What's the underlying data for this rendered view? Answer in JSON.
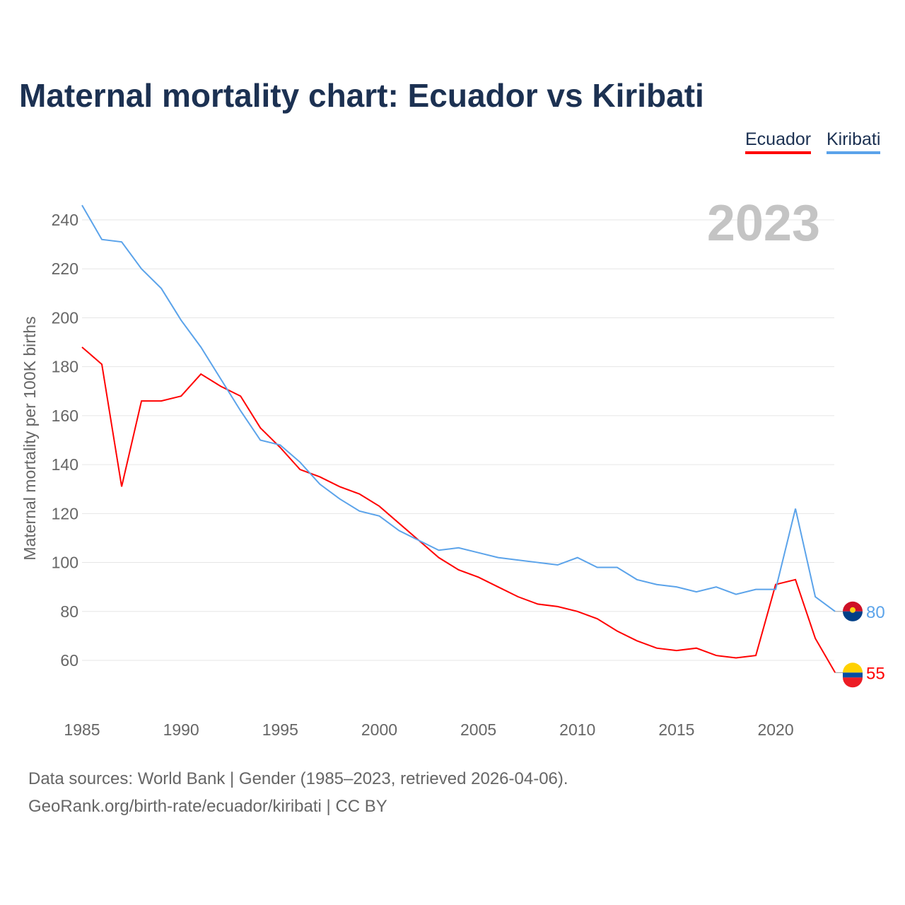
{
  "chart_data": {
    "type": "line",
    "title": "Maternal mortality chart: Ecuador vs Kiribati",
    "ylabel": "Maternal mortality per 100K births",
    "xlabel": "",
    "year_label": "2023",
    "xlim": [
      1985,
      2023
    ],
    "ylim": [
      45,
      250
    ],
    "xticks": [
      1985,
      1990,
      1995,
      2000,
      2005,
      2010,
      2015,
      2020
    ],
    "yticks": [
      60,
      80,
      100,
      120,
      140,
      160,
      180,
      200,
      220,
      240
    ],
    "grid": true,
    "legend_position": "top-right",
    "x": [
      1985,
      1986,
      1987,
      1988,
      1989,
      1990,
      1991,
      1992,
      1993,
      1994,
      1995,
      1996,
      1997,
      1998,
      1999,
      2000,
      2001,
      2002,
      2003,
      2004,
      2005,
      2006,
      2007,
      2008,
      2009,
      2010,
      2011,
      2012,
      2013,
      2014,
      2015,
      2016,
      2017,
      2018,
      2019,
      2020,
      2021,
      2022,
      2023
    ],
    "series": [
      {
        "name": "Ecuador",
        "color": "#ff0000",
        "end_label": "55",
        "values": [
          188,
          181,
          131,
          166,
          166,
          168,
          177,
          172,
          168,
          155,
          147,
          138,
          135,
          131,
          128,
          123,
          116,
          109,
          102,
          97,
          94,
          90,
          86,
          83,
          82,
          80,
          77,
          72,
          68,
          65,
          64,
          65,
          62,
          61,
          62,
          91,
          93,
          69,
          55
        ]
      },
      {
        "name": "Kiribati",
        "color": "#5ba3ea",
        "end_label": "80",
        "values": [
          246,
          232,
          231,
          220,
          212,
          199,
          188,
          175,
          162,
          150,
          148,
          141,
          132,
          126,
          121,
          119,
          113,
          109,
          105,
          106,
          104,
          102,
          101,
          100,
          99,
          102,
          98,
          98,
          93,
          91,
          90,
          88,
          90,
          87,
          89,
          89,
          122,
          86,
          80
        ]
      }
    ]
  },
  "footer": {
    "line1": "Data sources: World Bank | Gender (1985–2023, retrieved 2026-04-06).",
    "line2": "GeoRank.org/birth-rate/ecuador/kiribati | CC BY"
  }
}
